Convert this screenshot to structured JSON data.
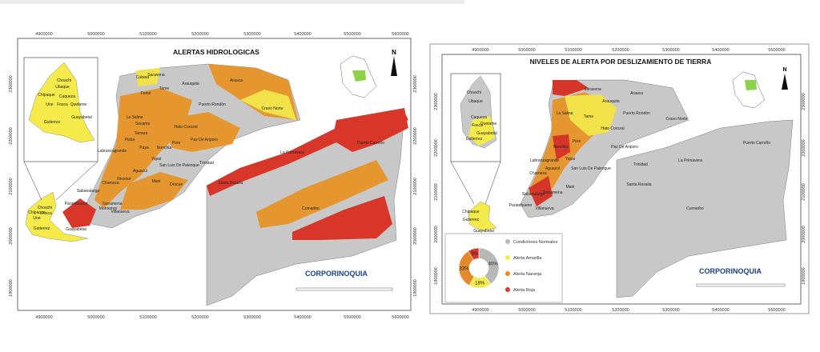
{
  "left_map": {
    "title": "ALERTAS HIDROLOGICAS",
    "x_ticks": [
      "4900000",
      "5000000",
      "5100000",
      "5200000",
      "5300000",
      "5400000",
      "5500000",
      "5600000"
    ],
    "y_ticks": [
      "2300000",
      "2200000",
      "2100000",
      "2000000",
      "1900000"
    ],
    "north": "N",
    "logo": "CORPORINOQUIA",
    "places": [
      "Saravena",
      "Arauca",
      "Arauquita",
      "Cubara",
      "Tame",
      "Fortul",
      "Puerto Rondón",
      "Cravo Norte",
      "Hato Corozal",
      "La Salina",
      "Sacama",
      "Paz De Ariporo",
      "Tamara",
      "Pore",
      "Nunchia",
      "Paya",
      "Pisba",
      "Trinidad",
      "Yopal",
      "San Luis De Palenque",
      "Labranzagrande",
      "Aguazul",
      "Recetor",
      "Chameza",
      "Orocue",
      "Mani",
      "Tauramena",
      "Monterrey",
      "Sabanalarga",
      "Villanueva",
      "Paratebueno",
      "Santa Rosalia",
      "La Primavera",
      "Puerto Carreño",
      "Cumaribo"
    ],
    "inset_places": [
      "Choachi",
      "Ubaque",
      "Chipaque",
      "Caqueza",
      "Une",
      "Fosca",
      "Quetame",
      "Guayabetal",
      "Gutierrez"
    ],
    "small_places": [
      "Choachi",
      "Chipaque",
      "Une",
      "Fosca",
      "Gutierrez",
      "Guayabetal"
    ]
  },
  "right_map": {
    "title": "NIVELES DE ALERTA POR DESLIZAMIENTO DE TIERRA",
    "x_ticks": [
      "4900000",
      "5000000",
      "5100000",
      "5200000",
      "5300000",
      "5400000",
      "5500000"
    ],
    "y_ticks": [
      "2300000",
      "2200000",
      "2100000",
      "2000000",
      "1900000"
    ],
    "north": "N",
    "logo": "CORPORINOQUIA",
    "places": [
      "Saravena",
      "Arauca",
      "Arauquita",
      "Tame",
      "Puerto Rondón",
      "Cravo Norte",
      "Hato Corozal",
      "La Salina",
      "Paz De Ariporo",
      "Pore",
      "Nunchia",
      "Trinidad",
      "Yopal",
      "San Luis De Palenque",
      "Labranzagrande",
      "Aguazul",
      "Chameza",
      "Mani",
      "Tauramena",
      "Sabanalarga",
      "Villanueva",
      "Paratebueno",
      "Santa Rosalia",
      "La Primavera",
      "Puerto Carreño",
      "Cumaribo"
    ],
    "inset_places": [
      "Choachi",
      "Ubaque",
      "Caqueza",
      "Fosca",
      "Quetame",
      "Guayabetal",
      "Gutierrez"
    ],
    "small_places": [
      "Chipaque",
      "Gutierrez",
      "Guayabetal"
    ],
    "donut": {
      "type": "pie",
      "categories": [
        "Condiciones Normales",
        "Alerta Amarilla",
        "Alerta Naranja",
        "Alerta Roja"
      ],
      "values": [
        40,
        18,
        33,
        9
      ],
      "value_labels": [
        "40%",
        "18%",
        "33%",
        "9%"
      ],
      "colors": [
        "#b8b8b8",
        "#f4ea4a",
        "#e58a2a",
        "#d63a2a"
      ]
    }
  }
}
